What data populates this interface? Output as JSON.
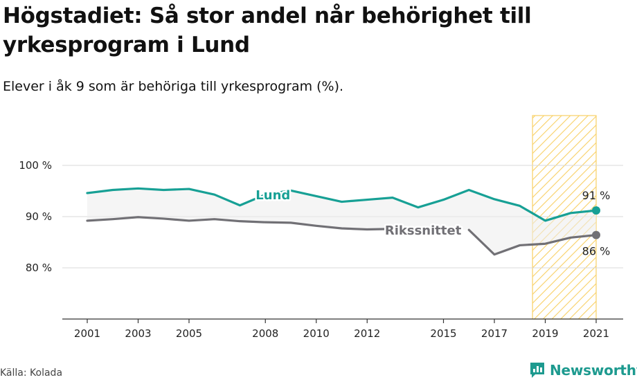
{
  "title": "Högstadiet: Så stor andel når behörighet till yrkesprogram i Lund",
  "subtitle": "Elever i åk 9 som är behöriga till yrkesprogram (%).",
  "source": "Källa: Kolada",
  "brand": {
    "name": "Newsworthy",
    "icon": "newsworthy-chart-icon",
    "color": "#1d9a8f"
  },
  "chart_data": {
    "type": "line",
    "x": [
      2001,
      2002,
      2003,
      2004,
      2005,
      2006,
      2007,
      2008,
      2009,
      2010,
      2011,
      2012,
      2013,
      2014,
      2015,
      2016,
      2017,
      2018,
      2019,
      2020,
      2021
    ],
    "x_ticks": [
      "2001",
      "2003",
      "2005",
      "2008",
      "2010",
      "2012",
      "2015",
      "2017",
      "2019",
      "2021"
    ],
    "y_ticks": [
      "80 %",
      "90 %",
      "100 %"
    ],
    "ylim": [
      70,
      100
    ],
    "grid": true,
    "series": [
      {
        "name": "Lund",
        "color": "#17a095",
        "values": [
          94.6,
          95.2,
          95.5,
          95.2,
          95.4,
          94.3,
          92.2,
          94.3,
          95.1,
          94.0,
          92.9,
          93.3,
          93.7,
          91.8,
          93.3,
          95.2,
          93.4,
          92.1,
          89.2,
          90.7,
          91.2
        ],
        "end_label": "91 %"
      },
      {
        "name": "Rikssnittet",
        "color": "#717075",
        "values": [
          89.2,
          89.5,
          89.9,
          89.6,
          89.2,
          89.5,
          89.1,
          88.9,
          88.8,
          88.2,
          87.7,
          87.5,
          87.6,
          null,
          null,
          87.4,
          82.6,
          84.4,
          84.7,
          85.9,
          86.4
        ],
        "end_label": "86 %"
      }
    ],
    "highlight": {
      "from": 2018.5,
      "to": 2021,
      "color": "#f7c84a"
    }
  }
}
